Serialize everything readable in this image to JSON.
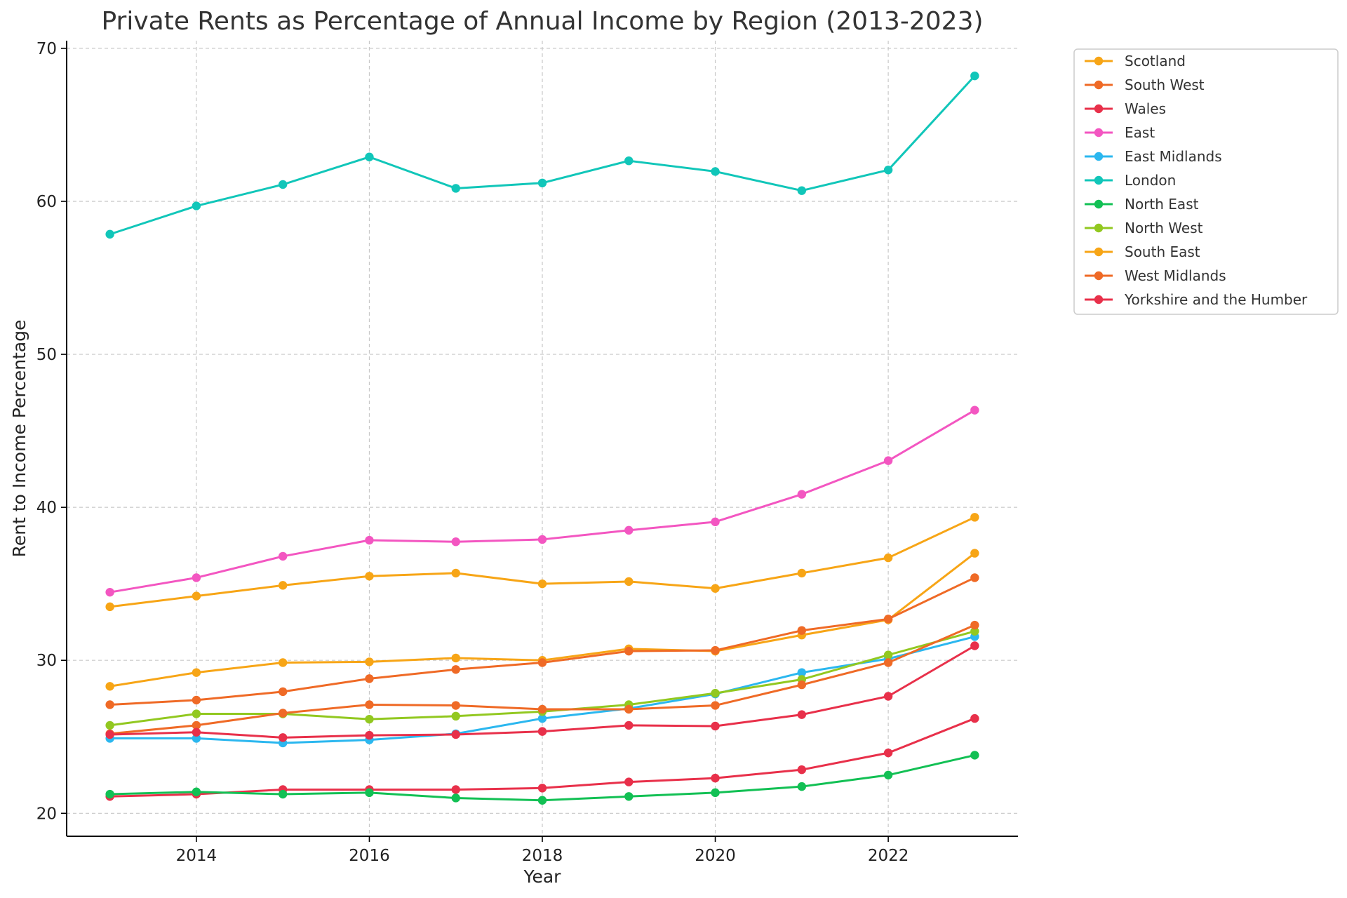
{
  "chart_data": {
    "type": "line",
    "title": "Private Rents as Percentage of Annual Income by Region (2013-2023)",
    "xlabel": "Year",
    "ylabel": "Rent to Income Percentage",
    "xlim": [
      2012.5,
      2023.5
    ],
    "ylim": [
      18.5,
      70.5
    ],
    "xticks": [
      2014,
      2016,
      2018,
      2020,
      2022
    ],
    "yticks": [
      20,
      30,
      40,
      50,
      60,
      70
    ],
    "grid": true,
    "legend_position": "outside-top-right",
    "x": [
      2013,
      2014,
      2015,
      2016,
      2017,
      2018,
      2019,
      2020,
      2021,
      2022,
      2023
    ],
    "series": [
      {
        "name": " Scotland",
        "color": "#f7a516",
        "values": [
          28.3,
          29.2,
          29.85,
          29.9,
          30.15,
          30.0,
          30.75,
          30.6,
          31.65,
          32.65,
          37.0
        ]
      },
      {
        "name": " South West",
        "color": "#ef6a26",
        "values": [
          27.1,
          27.4,
          27.95,
          28.8,
          29.4,
          29.85,
          30.6,
          30.65,
          31.95,
          32.7,
          35.4
        ]
      },
      {
        "name": " Wales",
        "color": "#e8304a",
        "values": [
          21.1,
          21.25,
          21.55,
          21.55,
          21.55,
          21.65,
          22.05,
          22.3,
          22.85,
          23.95,
          26.2
        ]
      },
      {
        "name": "East",
        "color": "#f356c1",
        "values": [
          34.45,
          35.4,
          36.8,
          37.85,
          37.75,
          37.9,
          38.5,
          39.05,
          40.85,
          43.05,
          46.35
        ]
      },
      {
        "name": "East Midlands",
        "color": "#2bb7ef",
        "values": [
          24.9,
          24.9,
          24.6,
          24.8,
          25.2,
          26.2,
          26.85,
          27.8,
          29.2,
          30.1,
          31.55
        ]
      },
      {
        "name": "London",
        "color": "#11c6b9",
        "values": [
          57.85,
          59.7,
          61.1,
          62.9,
          60.85,
          61.2,
          62.65,
          61.95,
          60.7,
          62.05,
          68.2
        ]
      },
      {
        "name": "North East",
        "color": "#12c054",
        "values": [
          21.25,
          21.4,
          21.25,
          21.35,
          21.0,
          20.85,
          21.1,
          21.35,
          21.75,
          22.5,
          23.8
        ]
      },
      {
        "name": "North West",
        "color": "#92c820",
        "values": [
          25.75,
          26.5,
          26.5,
          26.15,
          26.35,
          26.65,
          27.1,
          27.85,
          28.75,
          30.35,
          31.9
        ]
      },
      {
        "name": "South East",
        "color": "#f7a516",
        "values": [
          33.5,
          34.2,
          34.9,
          35.5,
          35.7,
          35.0,
          35.15,
          34.7,
          35.7,
          36.7,
          39.35
        ]
      },
      {
        "name": "West Midlands",
        "color": "#ef6a26",
        "values": [
          25.2,
          25.75,
          26.55,
          27.1,
          27.05,
          26.8,
          26.8,
          27.05,
          28.4,
          29.85,
          32.3
        ]
      },
      {
        "name": "Yorkshire and the Humber",
        "color": "#e8304a",
        "values": [
          25.15,
          25.3,
          24.95,
          25.1,
          25.15,
          25.35,
          25.75,
          25.7,
          26.45,
          27.65,
          30.95
        ]
      }
    ]
  }
}
